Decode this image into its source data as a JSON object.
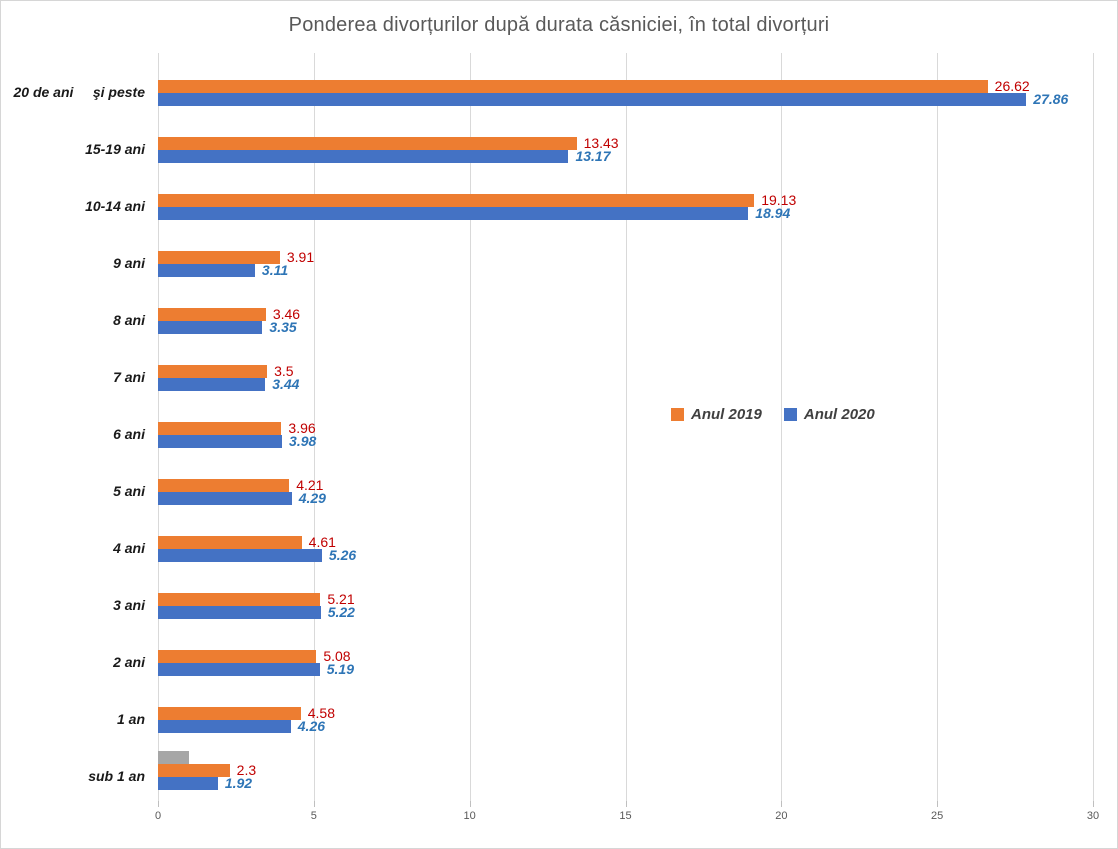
{
  "chart_data": {
    "type": "bar",
    "orientation": "horizontal",
    "title": "Ponderea divorțurilor după durata căsniciei, în total divorțuri",
    "categories": [
      "20 de ani     şi peste",
      "15-19 ani",
      "10-14 ani",
      "9 ani",
      "8 ani",
      "7 ani",
      "6 ani",
      "5 ani",
      "4 ani",
      "3 ani",
      "2 ani",
      "1 an",
      "sub 1 an"
    ],
    "series": [
      {
        "name": "Anul 2019",
        "color": "#ED7D31",
        "label_color": "#C00000",
        "values": [
          26.62,
          13.43,
          19.13,
          3.91,
          3.46,
          3.5,
          3.96,
          4.21,
          4.61,
          5.21,
          5.08,
          4.58,
          2.3
        ]
      },
      {
        "name": "Anul 2020",
        "color": "#4472C4",
        "label_color": "#2E75B6",
        "values": [
          27.86,
          13.17,
          18.94,
          3.11,
          3.35,
          3.44,
          3.98,
          4.29,
          5.26,
          5.22,
          5.19,
          4.26,
          1.92
        ]
      }
    ],
    "extra_bar": {
      "category": "sub 1 an",
      "color": "#A6A6A6",
      "value": 1.0,
      "label": ""
    },
    "x_ticks": [
      0,
      5,
      10,
      15,
      20,
      25,
      30
    ],
    "xlim": [
      0,
      30
    ],
    "grid": "vertical",
    "legend_position": "middle-right"
  },
  "colors": {
    "background": "#FFFFFF",
    "border": "#D6D6D6",
    "gridline": "#D9D9D9",
    "title_text": "#595959",
    "axis_text": "#595959",
    "category_text": "#1A1A1A",
    "legend_text": "#404040"
  }
}
